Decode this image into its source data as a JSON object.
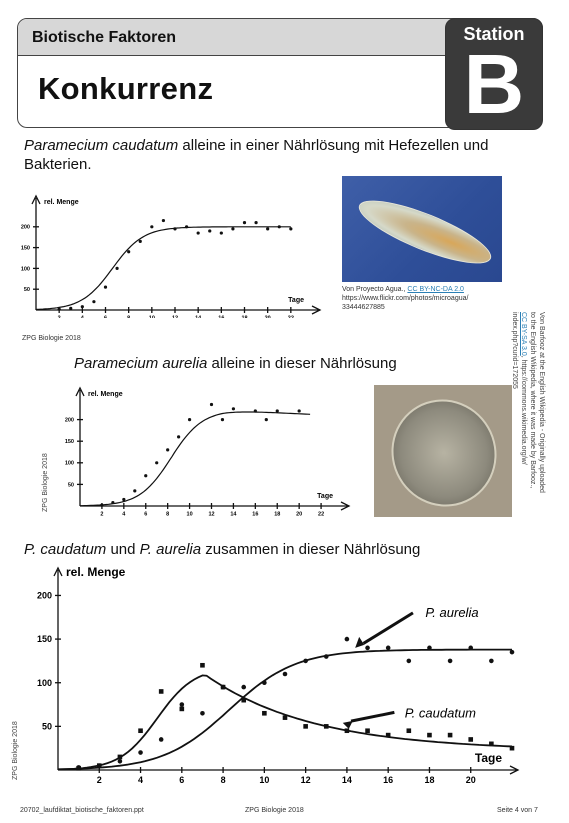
{
  "header": {
    "subtitle": "Biotische Faktoren",
    "title": "Konkurrenz",
    "station_label": "Station",
    "station_letter": "B"
  },
  "section1": {
    "species": "Paramecium caudatum",
    "text_rest": " alleine in einer Nährlösung mit Hefezellen und Bakterien.",
    "credit_text": "Von Proyecto Agua., ",
    "credit_link": "CC BY-NC-DA 2.0",
    "credit_url": "https://www.flickr.com/photos/microagua/",
    "credit_id": "33444627885",
    "footer": "ZPG Biologie 2018"
  },
  "section2": {
    "species": "Paramecium aurelia",
    "text_rest": " alleine in dieser Nährlösung",
    "side_credit_1": "Von Barfooz at the English Wikipedia - Originally uploaded",
    "side_credit_2": "to the English Wikipedia, where it was made by Barfooz.,",
    "side_credit_3a": "CC BY-SA 3.0",
    "side_credit_3b": ", https://commons.wikimedia.org/w/",
    "side_credit_4": "index.php?curid=172055",
    "footer": "ZPG Biologie 2018"
  },
  "section3": {
    "species_a": "P. caudatum",
    "mid": " und ",
    "species_b": "P. aurelia",
    "text_rest": " zusammen in dieser Nährlösung",
    "label_aurelia": "P. aurelia",
    "label_caudatum": "P. caudatum",
    "footer": "ZPG Biologie 2018"
  },
  "footer": {
    "left": "20702_laufdiktat_biotische_faktoren.ppt",
    "center": "ZPG Biologie 2018",
    "right": "Seite 4 von 7"
  },
  "chart_data": [
    {
      "type": "scatter",
      "ylabel": "rel. Menge",
      "xlabel": "Tage",
      "xlim": [
        0,
        24
      ],
      "ylim": [
        0,
        250
      ],
      "y_ticks": [
        50,
        100,
        150,
        200
      ],
      "x_ticks": [
        2,
        4,
        6,
        8,
        10,
        12,
        14,
        16,
        18,
        20,
        22
      ],
      "series": [
        {
          "x": [
            2,
            3,
            4,
            5,
            6,
            7,
            8,
            9,
            10,
            11,
            12,
            13,
            14,
            15,
            16,
            17,
            18,
            19,
            20,
            21,
            22
          ],
          "y": [
            2,
            4,
            8,
            20,
            55,
            100,
            140,
            165,
            200,
            215,
            195,
            200,
            185,
            190,
            185,
            195,
            210,
            210,
            195,
            200,
            195
          ]
        }
      ]
    },
    {
      "type": "scatter",
      "ylabel": "rel. Menge",
      "xlabel": "Tage",
      "xlim": [
        0,
        24
      ],
      "ylim": [
        0,
        250
      ],
      "y_ticks": [
        50,
        100,
        150,
        200
      ],
      "x_ticks": [
        2,
        4,
        6,
        8,
        10,
        12,
        14,
        16,
        18,
        20,
        22
      ],
      "series": [
        {
          "x": [
            2,
            3,
            4,
            5,
            6,
            7,
            8,
            9,
            10,
            12,
            13,
            14,
            16,
            17,
            18,
            20
          ],
          "y": [
            2,
            8,
            15,
            35,
            70,
            100,
            130,
            160,
            200,
            235,
            200,
            225,
            220,
            200,
            220,
            220
          ]
        }
      ]
    },
    {
      "type": "scatter",
      "ylabel": "rel. Menge",
      "xlabel": "Tage",
      "xlim": [
        0,
        22
      ],
      "ylim": [
        0,
        220
      ],
      "y_ticks": [
        50,
        100,
        150,
        200
      ],
      "x_ticks": [
        2,
        4,
        6,
        8,
        10,
        12,
        14,
        16,
        18,
        20
      ],
      "series": [
        {
          "name": "P. aurelia",
          "x": [
            1,
            2,
            3,
            4,
            5,
            6,
            7,
            8,
            9,
            10,
            11,
            12,
            13,
            14,
            15,
            16,
            17,
            18,
            19,
            20,
            21,
            22
          ],
          "y": [
            3,
            5,
            10,
            20,
            35,
            75,
            65,
            95,
            95,
            100,
            110,
            125,
            130,
            150,
            140,
            140,
            125,
            140,
            125,
            140,
            125,
            135
          ]
        },
        {
          "name": "P. caudatum",
          "x": [
            1,
            2,
            3,
            4,
            5,
            6,
            7,
            8,
            9,
            10,
            11,
            12,
            13,
            14,
            15,
            16,
            17,
            18,
            19,
            20,
            21,
            22
          ],
          "y": [
            2,
            5,
            15,
            45,
            90,
            70,
            120,
            95,
            80,
            65,
            60,
            50,
            50,
            45,
            45,
            40,
            45,
            40,
            40,
            35,
            30,
            25
          ]
        }
      ]
    }
  ]
}
